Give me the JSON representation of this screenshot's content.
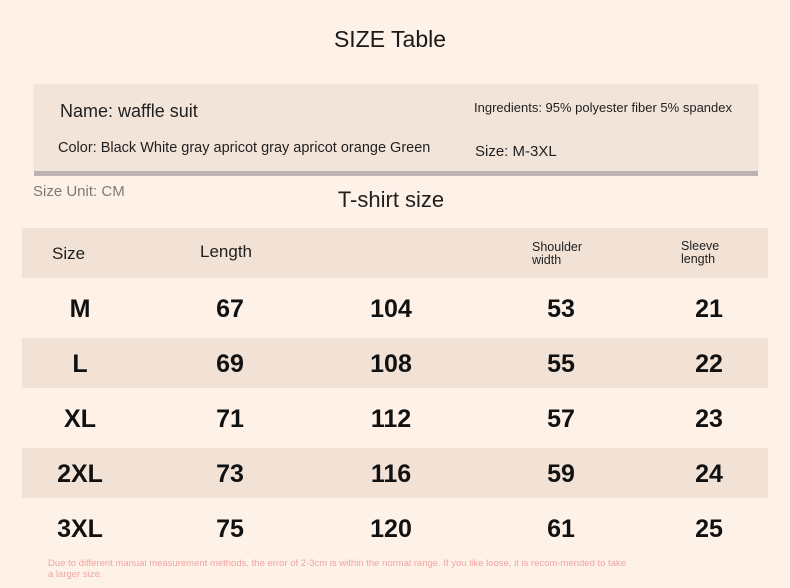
{
  "title": "SIZE Table",
  "info": {
    "name": "Name: waffle suit",
    "ingredients": "Ingredients: 95% polyester fiber 5% spandex",
    "color": "Color: Black White gray apricot gray apricot orange Green",
    "size": "Size: M-3XL"
  },
  "size_unit": "Size Unit: CM",
  "subtitle": "T-shirt size",
  "table": {
    "headers": [
      "Size",
      "Length",
      "",
      "Shoulder width",
      "Sleeve length"
    ],
    "rows": [
      [
        "M",
        "67",
        "104",
        "53",
        "21"
      ],
      [
        "L",
        "69",
        "108",
        "55",
        "22"
      ],
      [
        "XL",
        "71",
        "112",
        "57",
        "23"
      ],
      [
        "2XL",
        "73",
        "116",
        "59",
        "24"
      ],
      [
        "3XL",
        "75",
        "120",
        "61",
        "25"
      ]
    ]
  },
  "note": "Due to different manual measurement methods, the error of 2-3cm is within the normal range. If you like loose, it is recom-mended to take a larger size."
}
